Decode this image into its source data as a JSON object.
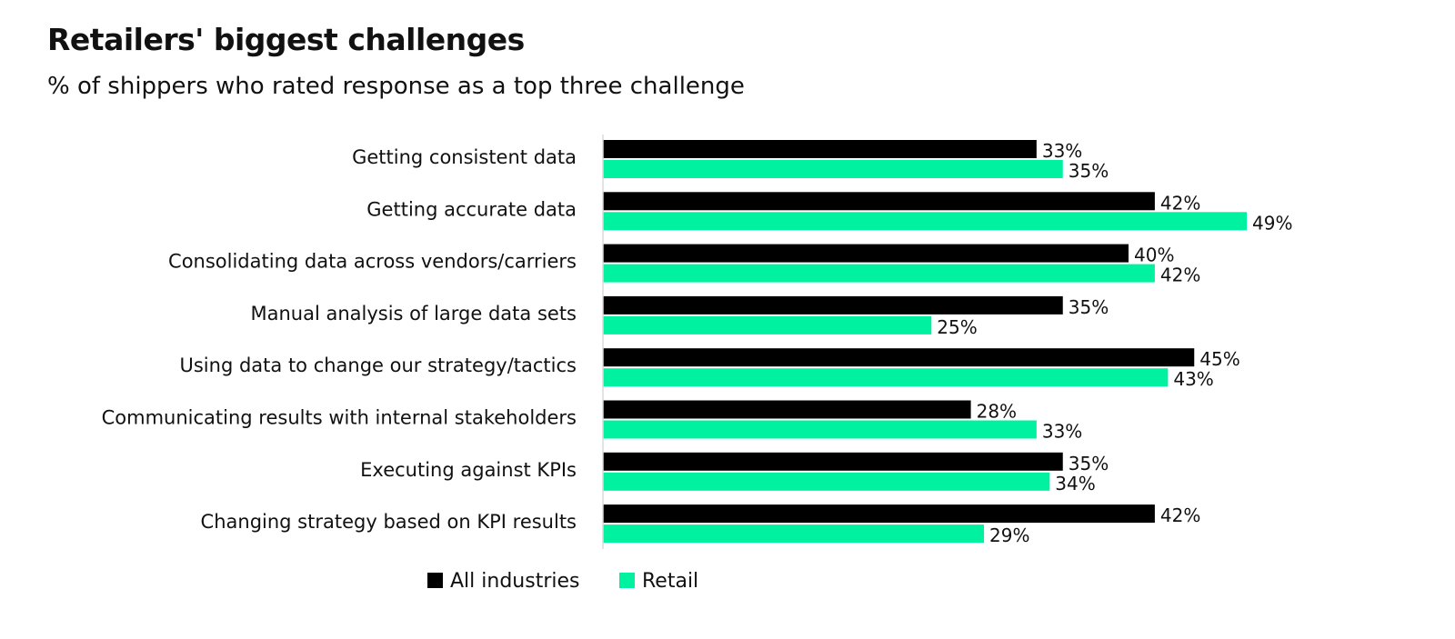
{
  "chart_data": {
    "type": "bar",
    "orientation": "horizontal",
    "title": "Retailers' biggest challenges",
    "subtitle": "% of shippers who rated response as a top three challenge",
    "categories": [
      "Getting consistent data",
      "Getting accurate data",
      "Consolidating data across vendors/carriers",
      "Manual analysis of large data sets",
      "Using data to change our strategy/tactics",
      "Communicating results with internal stakeholders",
      "Executing against KPIs",
      "Changing strategy based on KPI results"
    ],
    "series": [
      {
        "name": "All industries",
        "color": "#000000",
        "values": [
          33,
          42,
          40,
          35,
          45,
          28,
          35,
          42
        ]
      },
      {
        "name": "Retail",
        "color": "#00F2A0",
        "values": [
          35,
          49,
          42,
          25,
          43,
          33,
          34,
          29
        ]
      }
    ],
    "value_suffix": "%",
    "xlim": [
      0,
      50
    ],
    "grid": false,
    "legend": "bottom"
  }
}
